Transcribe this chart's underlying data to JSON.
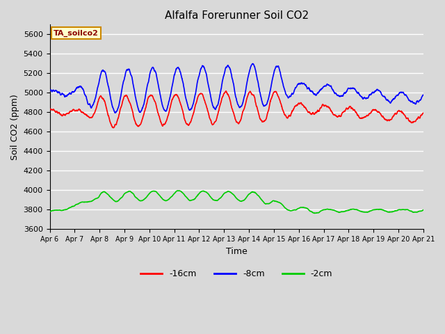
{
  "title": "Alfalfa Forerunner Soil CO2",
  "ylabel": "Soil CO2 (ppm)",
  "xlabel": "Time",
  "annotation": "TA_soilco2",
  "legend_labels": [
    "-16cm",
    "-8cm",
    "-2cm"
  ],
  "legend_colors": [
    "#ff0000",
    "#0000ff",
    "#00cc00"
  ],
  "xtick_labels": [
    "Apr 6",
    "Apr 7",
    "Apr 8",
    "Apr 9",
    "Apr 10",
    "Apr 11",
    "Apr 12",
    "Apr 13",
    "Apr 14",
    "Apr 15",
    "Apr 16",
    "Apr 17",
    "Apr 18",
    "Apr 19",
    "Apr 20",
    "Apr 21"
  ],
  "ylim": [
    3600,
    5700
  ],
  "yticks": [
    3600,
    3800,
    4000,
    4200,
    4400,
    4600,
    4800,
    5000,
    5200,
    5400,
    5600
  ],
  "bg_color": "#d9d9d9",
  "plot_bg_color": "#d9d9d9",
  "grid_color": "#ffffff",
  "line_width": 1.2,
  "figsize": [
    6.4,
    4.8
  ],
  "dpi": 100
}
